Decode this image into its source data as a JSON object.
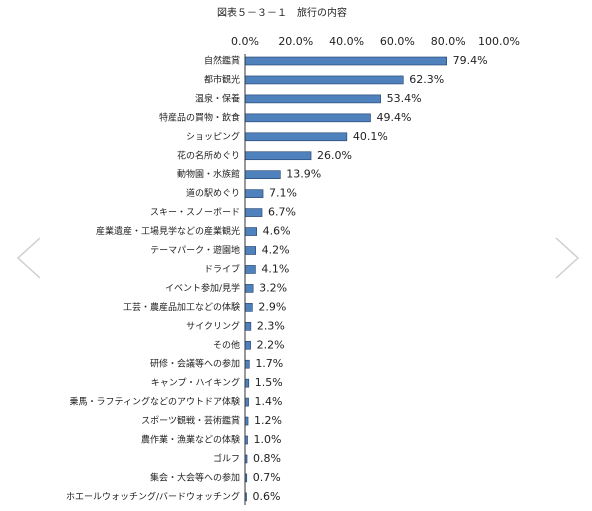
{
  "chart_data": {
    "type": "bar",
    "orientation": "horizontal",
    "title": "図表５－３－１　旅行の内容",
    "xlabel": "",
    "ylabel": "",
    "xlim": [
      0,
      100
    ],
    "x_ticks": [
      "0.0%",
      "20.0%",
      "40.0%",
      "60.0%",
      "80.0%",
      "100.0%"
    ],
    "grid": false,
    "bar_color": "#4f81bd",
    "categories": [
      "自然鑑賞",
      "都市観光",
      "温泉・保養",
      "特産品の買物・飲食",
      "ショッピング",
      "花の名所めぐり",
      "動物園・水族館",
      "道の駅めぐり",
      "スキー・スノーボード",
      "産業遺産・工場見学などの産業観光",
      "テーマパーク・遊園地",
      "ドライブ",
      "イベント参加/見学",
      "工芸・農産品加工などの体験",
      "サイクリング",
      "その他",
      "研修・会議等への参加",
      "キャンプ・ハイキング",
      "乗馬・ラフティングなどのアウトドア体験",
      "スポーツ観戦・芸術鑑賞",
      "農作業・漁業などの体験",
      "ゴルフ",
      "集会・大会等への参加",
      "ホエールウォッチング/バードウォッチング"
    ],
    "values": [
      79.4,
      62.3,
      53.4,
      49.4,
      40.1,
      26.0,
      13.9,
      7.1,
      6.7,
      4.6,
      4.2,
      4.1,
      3.2,
      2.9,
      2.3,
      2.2,
      1.7,
      1.5,
      1.4,
      1.2,
      1.0,
      0.8,
      0.7,
      0.6
    ],
    "data_labels": [
      "79.4%",
      "62.3%",
      "53.4%",
      "49.4%",
      "40.1%",
      "26.0%",
      "13.9%",
      "7.1%",
      "6.7%",
      "4.6%",
      "4.2%",
      "4.1%",
      "3.2%",
      "2.9%",
      "2.3%",
      "2.2%",
      "1.7%",
      "1.5%",
      "1.4%",
      "1.2%",
      "1.0%",
      "0.8%",
      "0.7%",
      "0.6%"
    ]
  },
  "icons": {
    "prev": "chevron-left-icon",
    "next": "chevron-right-icon"
  }
}
